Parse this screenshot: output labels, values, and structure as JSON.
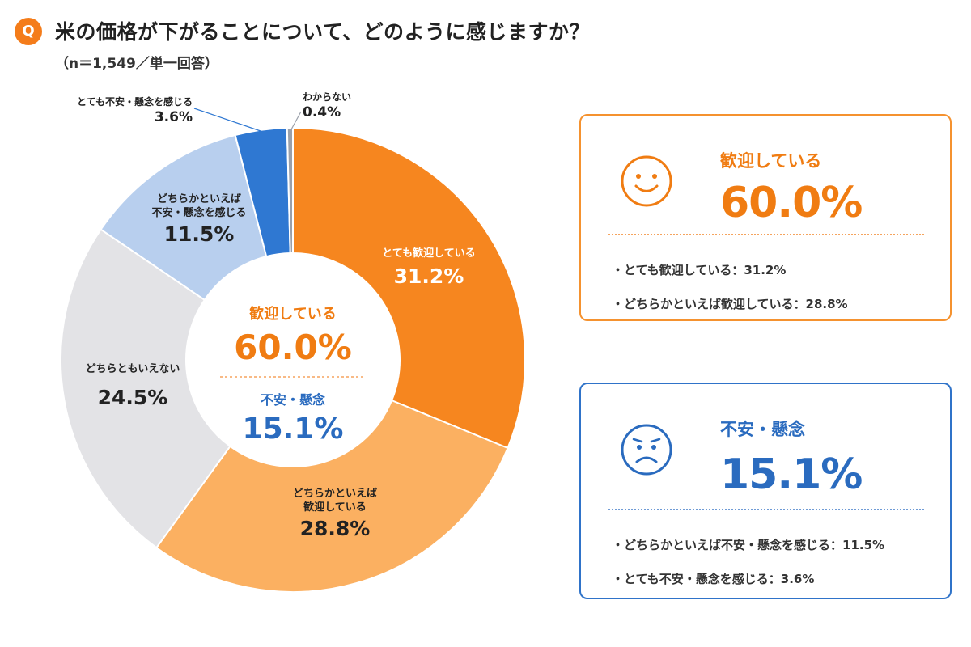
{
  "header": {
    "badge": "Q",
    "title": "米の価格が下がることについて、どのように感じますか？",
    "subtitle": "（n＝1,549／単一回答）"
  },
  "chart_data": {
    "type": "pie",
    "style": "donut",
    "categories": [
      "とても歓迎している",
      "どちらかといえば歓迎している",
      "どちらともいえない",
      "どちらかといえば不安・懸念を感じる",
      "とても不安・懸念を感じる",
      "わからない"
    ],
    "values": [
      31.2,
      28.8,
      24.5,
      11.5,
      3.6,
      0.4
    ],
    "value_labels": [
      "31.2%",
      "28.8%",
      "24.5%",
      "11.5%",
      "3.6%",
      "0.4%"
    ],
    "slice_label_lines": [
      [
        "とても歓迎している"
      ],
      [
        "どちらかといえば",
        "歓迎している"
      ],
      [
        "どちらともいえない"
      ],
      [
        "どちらかといえば",
        "不安・懸念を感じる"
      ],
      [
        "とても不安・懸念を感じる"
      ],
      [
        "わからない"
      ]
    ],
    "colors": [
      "#f6861f",
      "#fbb061",
      "#e3e3e6",
      "#b8cfee",
      "#2f78d2",
      "#9aa0aa"
    ],
    "label_colors": [
      "#ffffff",
      "#222222",
      "#222222",
      "#222222",
      "#222222",
      "#222222"
    ],
    "center": {
      "positive_label": "歓迎している",
      "positive_value": "60.0%",
      "negative_label": "不安・懸念",
      "negative_value": "15.1%"
    }
  },
  "panels": {
    "positive": {
      "title": "歓迎している",
      "value": "60.0%",
      "items": [
        "・とても歓迎している：31.2%",
        "・どちらかといえば歓迎している：28.8%"
      ],
      "icon": "smile-face-icon",
      "color": "#f07c12"
    },
    "negative": {
      "title": "不安・懸念",
      "value": "15.1%",
      "items": [
        "・どちらかといえば不安・懸念を感じる：11.5%",
        "・とても不安・懸念を感じる：3.6%"
      ],
      "icon": "worried-face-icon",
      "color": "#2a6bbf"
    }
  }
}
